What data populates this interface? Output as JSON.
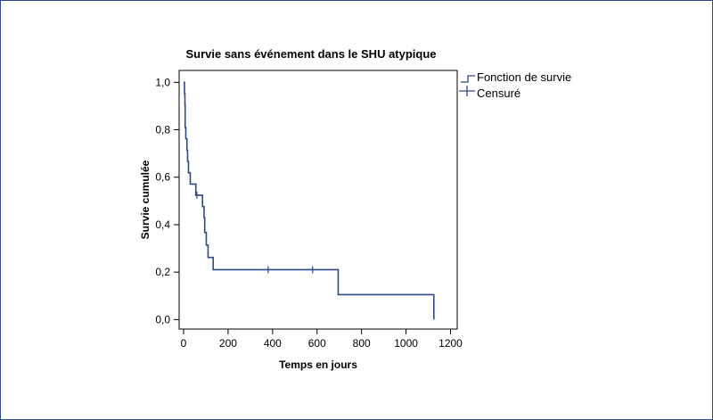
{
  "chart_data": {
    "type": "line",
    "title": "Survie sans événement dans le SHU atypique",
    "xlabel": "Temps en jours",
    "ylabel": "Survie cumulée",
    "xlim": [
      -20,
      1230
    ],
    "ylim": [
      -0.04,
      1.05
    ],
    "x_ticks": [
      0,
      200,
      400,
      600,
      800,
      1000,
      1200
    ],
    "x_tick_labels": [
      "0",
      "200",
      "400",
      "600",
      "800",
      "1000",
      "1200"
    ],
    "y_ticks": [
      0.0,
      0.2,
      0.4,
      0.6,
      0.8,
      1.0
    ],
    "y_tick_labels": [
      "0,0",
      "0,2",
      "0,4",
      "0,6",
      "0,8",
      "1,0"
    ],
    "grid": false,
    "legend_position": "top-right outside",
    "colors": {
      "line": "#2f4a8a",
      "axis": "#000000",
      "frame": "#2f4a8a"
    },
    "series": [
      {
        "name": "Fonction de survie",
        "kind": "step",
        "points": [
          [
            0,
            1.0
          ],
          [
            4,
            0.952
          ],
          [
            6,
            0.905
          ],
          [
            7,
            0.81
          ],
          [
            10,
            0.762
          ],
          [
            15,
            0.714
          ],
          [
            18,
            0.667
          ],
          [
            22,
            0.619
          ],
          [
            30,
            0.571
          ],
          [
            55,
            0.524
          ],
          [
            85,
            0.476
          ],
          [
            92,
            0.429
          ],
          [
            95,
            0.367
          ],
          [
            102,
            0.314
          ],
          [
            110,
            0.262
          ],
          [
            133,
            0.21
          ],
          [
            695,
            0.105
          ],
          [
            1125,
            0.105
          ],
          [
            1125,
            0.0
          ]
        ]
      },
      {
        "name": "Censuré",
        "kind": "censor",
        "points": [
          [
            60,
            0.524
          ],
          [
            380,
            0.21
          ],
          [
            580,
            0.21
          ]
        ]
      }
    ],
    "legend": [
      {
        "label": "Fonction de survie",
        "symbol": "step"
      },
      {
        "label": "Censuré",
        "symbol": "cross"
      }
    ]
  }
}
